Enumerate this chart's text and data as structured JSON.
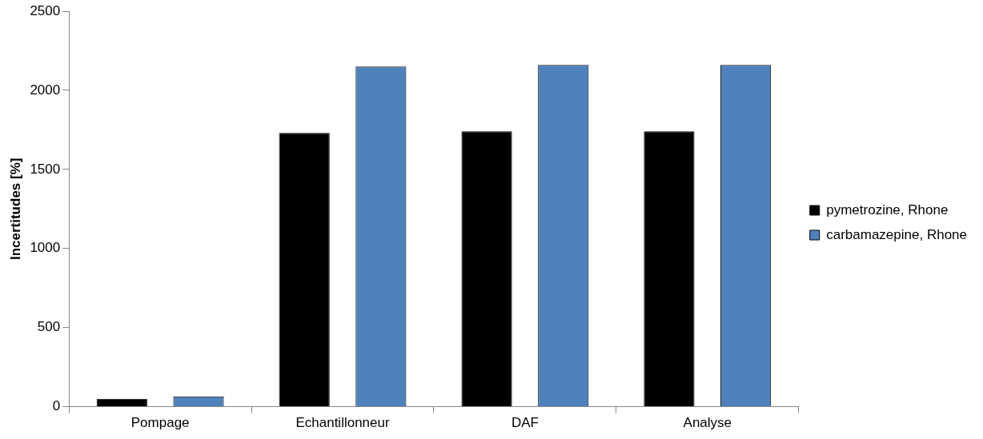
{
  "chart_data": {
    "type": "bar",
    "ylabel": "Incertitudes [%]",
    "categories": [
      "Pompage",
      "Echantillonneur",
      "DAF",
      "Analyse"
    ],
    "series": [
      {
        "name": "pymetrozine, Rhone",
        "color": "#000000",
        "values": [
          50,
          1730,
          1740,
          1740
        ]
      },
      {
        "name": "carbamazepine, Rhone",
        "color": "#4f81bd",
        "values": [
          65,
          2150,
          2160,
          2160
        ]
      }
    ],
    "ylim": [
      0,
      2500
    ],
    "yticks": [
      0,
      500,
      1000,
      1500,
      2000,
      2500
    ],
    "grid": false,
    "legend": "right"
  }
}
